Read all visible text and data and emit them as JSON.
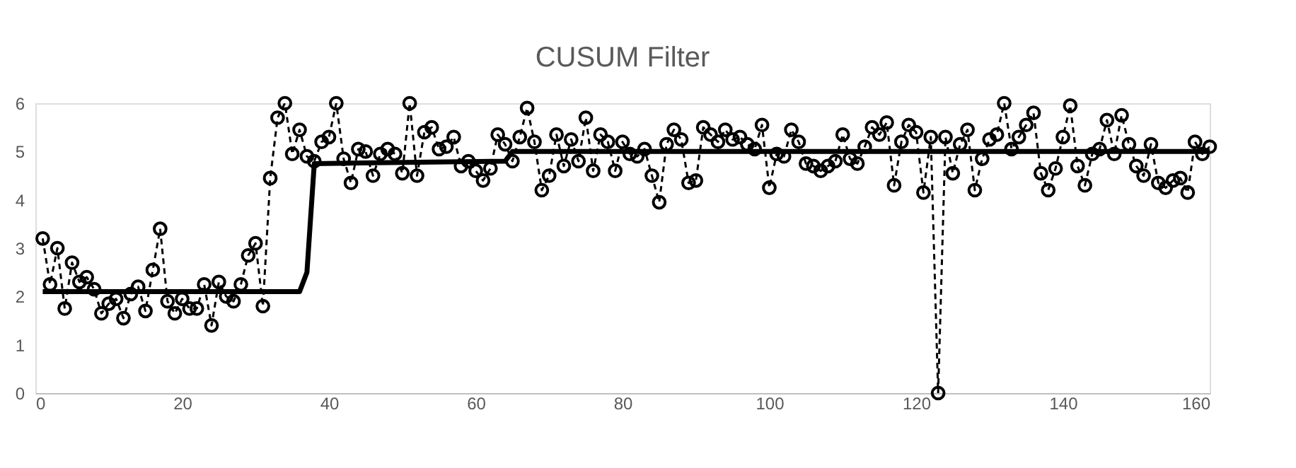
{
  "chart_data": {
    "type": "line",
    "title": "CUSUM Filter",
    "x": [
      1,
      2,
      3,
      4,
      5,
      6,
      7,
      8,
      9,
      10,
      11,
      12,
      13,
      14,
      15,
      16,
      17,
      18,
      19,
      20,
      21,
      22,
      23,
      24,
      25,
      26,
      27,
      28,
      29,
      30,
      31,
      32,
      33,
      34,
      35,
      36,
      37,
      38,
      39,
      40,
      41,
      42,
      43,
      44,
      45,
      46,
      47,
      48,
      49,
      50,
      51,
      52,
      53,
      54,
      55,
      56,
      57,
      58,
      59,
      60,
      61,
      62,
      63,
      64,
      65,
      66,
      67,
      68,
      69,
      70,
      71,
      72,
      73,
      74,
      75,
      76,
      77,
      78,
      79,
      80,
      81,
      82,
      83,
      84,
      85,
      86,
      87,
      88,
      89,
      90,
      91,
      92,
      93,
      94,
      95,
      96,
      97,
      98,
      99,
      100,
      101,
      102,
      103,
      104,
      105,
      106,
      107,
      108,
      109,
      110,
      111,
      112,
      113,
      114,
      115,
      116,
      117,
      118,
      119,
      120,
      121,
      122,
      123,
      124,
      125,
      126,
      127,
      128,
      129,
      130,
      131,
      132,
      133,
      134,
      135,
      136,
      137,
      138,
      139,
      140,
      141,
      142,
      143,
      144,
      145,
      146,
      147,
      148,
      149,
      150,
      151,
      152,
      153,
      154,
      155,
      156,
      157,
      158,
      159,
      160
    ],
    "series": [
      {
        "color": "#000000",
        "marker": "circle",
        "line_style": "dashed",
        "values": [
          3.2,
          2.25,
          3.0,
          1.75,
          2.7,
          2.3,
          2.4,
          2.15,
          1.65,
          1.85,
          1.95,
          1.55,
          2.05,
          2.2,
          1.7,
          2.55,
          3.4,
          1.9,
          1.65,
          1.95,
          1.75,
          1.75,
          2.25,
          1.4,
          2.3,
          2.0,
          1.9,
          2.25,
          2.85,
          3.1,
          1.8,
          4.45,
          5.7,
          6.0,
          4.95,
          5.45,
          4.9,
          4.8,
          5.2,
          5.3,
          6.0,
          4.85,
          4.35,
          5.05,
          5.0,
          4.5,
          4.95,
          5.05,
          4.95,
          4.55,
          6.0,
          4.5,
          5.4,
          5.5,
          5.05,
          5.1,
          5.3,
          4.7,
          4.8,
          4.6,
          4.4,
          4.65,
          5.35,
          5.15,
          4.8,
          5.3,
          5.9,
          5.2,
          4.2,
          4.5,
          5.35,
          4.7,
          5.25,
          4.8,
          5.7,
          4.6,
          5.35,
          5.2,
          4.6,
          5.2,
          4.95,
          4.9,
          5.05,
          4.5,
          3.95,
          5.15,
          5.45,
          5.25,
          4.35,
          4.4,
          5.5,
          5.35,
          5.2,
          5.45,
          5.25,
          5.3,
          5.15,
          5.05,
          5.55,
          4.25,
          4.95,
          4.9,
          5.45,
          5.2,
          4.75,
          4.7,
          4.6,
          4.7,
          4.8,
          5.35,
          4.85,
          4.75,
          5.1,
          5.5,
          5.35,
          5.6,
          4.3,
          5.2,
          5.55,
          5.4,
          4.15,
          5.3,
          0.0,
          5.3,
          4.55,
          5.15,
          5.45,
          4.2,
          4.85,
          5.25,
          5.35,
          6.0,
          5.05,
          5.3,
          5.55,
          5.8,
          4.55,
          4.2,
          4.65,
          5.3,
          5.95,
          4.7,
          4.3,
          4.95,
          5.05,
          5.65,
          4.95,
          5.75,
          5.15,
          4.7,
          4.5,
          5.15,
          4.35,
          4.25,
          4.4,
          4.45,
          4.15,
          5.2,
          4.95,
          5.1
        ]
      },
      {
        "color": "#000000",
        "marker": "none",
        "line_style": "solid",
        "x": [
          1,
          36,
          37,
          38,
          64,
          65,
          160
        ],
        "values": [
          2.1,
          2.1,
          2.5,
          4.75,
          4.8,
          5.0,
          5.0
        ]
      }
    ],
    "xlim": [
      0,
      160
    ],
    "xticks": [
      0,
      20,
      40,
      60,
      80,
      100,
      120,
      140,
      160
    ],
    "ylim": [
      0,
      6
    ],
    "yticks": [
      0,
      1,
      2,
      3,
      4,
      5,
      6
    ],
    "grid": false
  }
}
